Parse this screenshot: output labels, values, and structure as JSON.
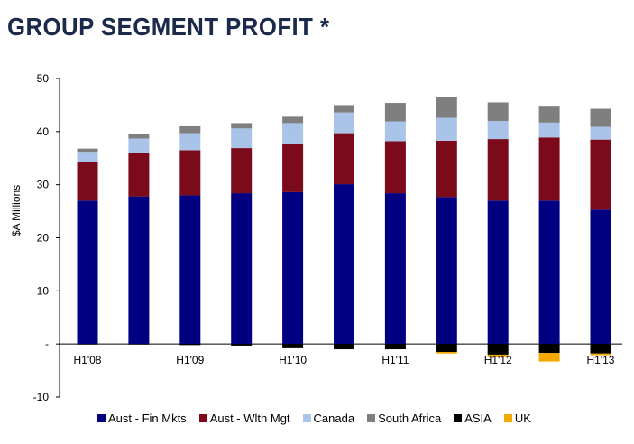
{
  "page": {
    "title": "GROUP SEGMENT PROFIT *"
  },
  "chart_data": {
    "type": "bar",
    "stacked": true,
    "ylabel": "$A Millions",
    "ylim": [
      -10,
      50
    ],
    "yticks": [
      {
        "value": 50,
        "label": "50"
      },
      {
        "value": 40,
        "label": "40"
      },
      {
        "value": 30,
        "label": "30"
      },
      {
        "value": 20,
        "label": "20"
      },
      {
        "value": 10,
        "label": "10"
      },
      {
        "value": 0,
        "label": "-"
      },
      {
        "value": -10,
        "label": "-10"
      }
    ],
    "categories": [
      "H1'08",
      "",
      "H1'09",
      "",
      "H1'10",
      "",
      "H1'11",
      "",
      "H1'12",
      "",
      "H1'13"
    ],
    "series": [
      {
        "name": "Aust - Fin Mkts",
        "color": "#000080",
        "values": [
          27.0,
          27.8,
          28.0,
          28.4,
          28.6,
          30.1,
          28.4,
          27.7,
          27.0,
          27.0,
          25.3
        ]
      },
      {
        "name": "Aust - Wlth Mgt",
        "color": "#7b0a1a",
        "values": [
          7.3,
          8.2,
          8.5,
          8.5,
          9.0,
          9.6,
          9.8,
          10.6,
          11.6,
          11.9,
          13.2
        ]
      },
      {
        "name": "Canada",
        "color": "#a9c4e8",
        "values": [
          1.9,
          2.7,
          3.2,
          3.7,
          4.0,
          3.9,
          3.7,
          4.3,
          3.4,
          2.8,
          2.4
        ]
      },
      {
        "name": "South Africa",
        "color": "#7f7f7f",
        "values": [
          0.6,
          0.8,
          1.3,
          1.0,
          1.2,
          1.4,
          3.5,
          4.0,
          3.5,
          3.0,
          3.4
        ]
      },
      {
        "name": "ASIA",
        "color": "#000000",
        "values": [
          -0.1,
          -0.1,
          -0.2,
          -0.3,
          -0.8,
          -1.0,
          -1.0,
          -1.5,
          -2.0,
          -1.7,
          -1.8
        ]
      },
      {
        "name": "UK",
        "color": "#f5a800",
        "values": [
          0,
          0,
          0,
          0,
          0,
          0,
          0,
          -0.3,
          -0.5,
          -1.6,
          -0.3
        ]
      }
    ],
    "legend_position": "bottom",
    "grid": false
  }
}
